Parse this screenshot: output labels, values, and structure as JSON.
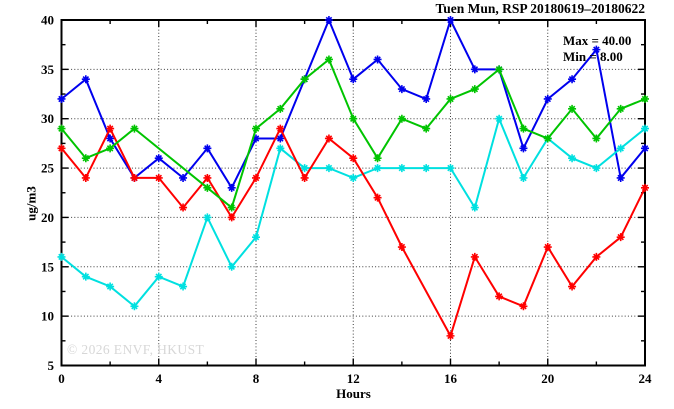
{
  "watermark": "© 2026 ENVF, HKUST",
  "chart_data": {
    "type": "line",
    "title": "Tuen Mun, RSP 20180619–20180622",
    "xlabel": "Hours",
    "ylabel": "ug/m3",
    "xlim": [
      0,
      24
    ],
    "ylim": [
      5,
      40
    ],
    "x_ticks": [
      0,
      4,
      8,
      12,
      16,
      20,
      24
    ],
    "x_minor_step": 2,
    "y_ticks": [
      5,
      10,
      15,
      20,
      25,
      30,
      35,
      40
    ],
    "y_minor_step": 2.5,
    "x_gridlines": [
      4,
      8,
      12,
      16,
      20
    ],
    "y_gridlines": [
      10,
      15,
      20,
      25,
      30,
      35
    ],
    "grid_style": "dotted",
    "legend": "none",
    "marker": "asterisk",
    "annotations": [
      "Max = 40.00",
      "Min = 8.00"
    ],
    "x": [
      0,
      1,
      2,
      3,
      4,
      5,
      6,
      7,
      8,
      9,
      10,
      11,
      12,
      13,
      14,
      15,
      16,
      17,
      18,
      19,
      20,
      21,
      22,
      23,
      24
    ],
    "series": [
      {
        "name": "series-blue",
        "color": "#0000ee",
        "values": [
          32,
          34,
          28,
          24,
          26,
          24,
          27,
          23,
          28,
          28,
          34,
          40,
          34,
          36,
          33,
          32,
          40,
          35,
          35,
          27,
          32,
          34,
          37,
          24,
          27
        ]
      },
      {
        "name": "series-cyan",
        "color": "#00e0e0",
        "values": [
          16,
          14,
          13,
          11,
          14,
          13,
          20,
          15,
          18,
          27,
          25,
          25,
          24,
          25,
          25,
          25,
          25,
          21,
          30,
          24,
          28,
          26,
          25,
          27,
          29
        ]
      },
      {
        "name": "series-red",
        "color": "#ff0000",
        "values": [
          27,
          24,
          29,
          24,
          24,
          21,
          24,
          20,
          24,
          29,
          24,
          28,
          26,
          22,
          17,
          null,
          8,
          16,
          12,
          11,
          17,
          13,
          16,
          18,
          23
        ]
      },
      {
        "name": "series-green",
        "color": "#00c400",
        "values": [
          29,
          26,
          27,
          29,
          null,
          null,
          23,
          21,
          29,
          31,
          34,
          36,
          30,
          26,
          30,
          29,
          32,
          33,
          35,
          29,
          28,
          31,
          28,
          31,
          32
        ]
      }
    ]
  }
}
